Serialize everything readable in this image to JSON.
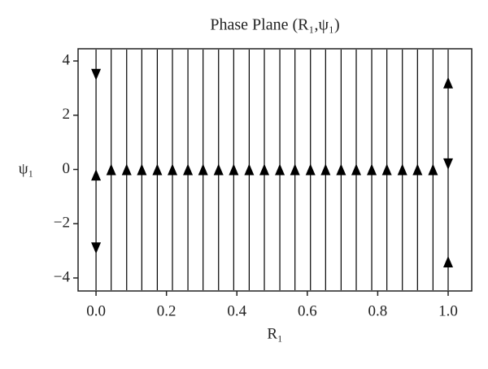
{
  "chart_data": {
    "type": "phase",
    "title": "Phase Plane (R₁,ψ₁)",
    "x_label": "R₁",
    "y_label": "ψ₁",
    "color": "#000000",
    "xlim": [
      -0.051,
      1.067
    ],
    "ylim": [
      -4.48,
      4.45
    ],
    "xticks": [
      {
        "value": 0,
        "label": "0.0"
      },
      {
        "value": 0.2,
        "label": "0.2"
      },
      {
        "value": 0.4,
        "label": "0.4"
      },
      {
        "value": 0.6,
        "label": "0.6"
      },
      {
        "value": 0.8,
        "label": "0.8"
      },
      {
        "value": 1,
        "label": "1.0"
      }
    ],
    "yticks": [
      {
        "value": -4,
        "label": "−4"
      },
      {
        "value": -2,
        "label": "−2"
      },
      0,
      2,
      4
    ],
    "lines_x": [
      0,
      0.043,
      0.087,
      0.13,
      0.174,
      0.217,
      0.261,
      0.304,
      0.348,
      0.391,
      0.435,
      0.478,
      0.522,
      0.565,
      0.609,
      0.652,
      0.696,
      0.739,
      0.783,
      0.826,
      0.87,
      0.913,
      0.957,
      1
    ],
    "arrows_up": {
      "x": [
        0,
        0.043,
        0.087,
        0.13,
        0.174,
        0.217,
        0.261,
        0.304,
        0.348,
        0.391,
        0.435,
        0.478,
        0.522,
        0.565,
        0.609,
        0.652,
        0.696,
        0.739,
        0.783,
        0.826,
        0.87,
        0.913,
        0.957,
        1,
        1
      ],
      "y": [
        -0.2,
        0,
        0,
        0,
        0,
        0,
        0,
        0,
        0,
        0,
        0,
        0,
        0,
        0,
        0,
        0,
        0,
        0,
        0,
        0,
        0,
        0,
        0,
        3.2,
        -3.4
      ]
    },
    "arrows_down": {
      "x": [
        0,
        0,
        1
      ],
      "y": [
        3.5,
        -2.9,
        0.2
      ]
    }
  }
}
